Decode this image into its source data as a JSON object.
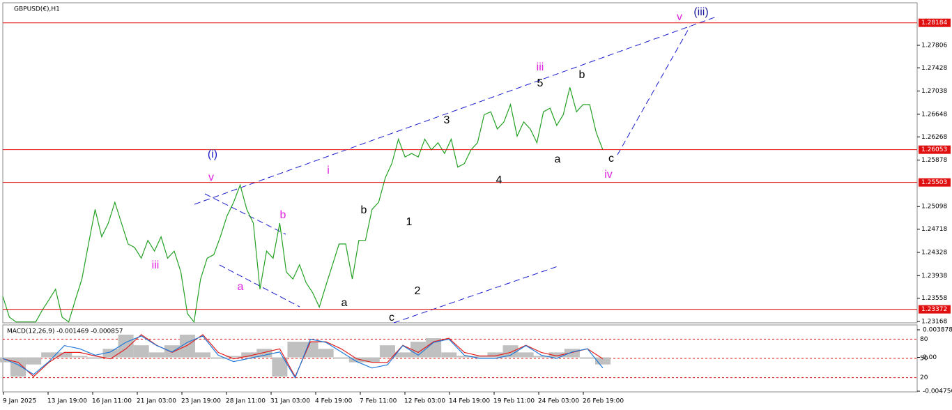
{
  "chart_data": [
    {
      "type": "line",
      "title": "GBPUSD(€),H1",
      "color": "#22a022",
      "ylim": [
        1.23145,
        1.2852
      ],
      "yticks": [
        1.27806,
        1.27428,
        1.27038,
        1.26648,
        1.26268,
        1.25878,
        1.25098,
        1.24718,
        1.24328,
        1.23938,
        1.23558,
        1.23168
      ],
      "levels": [
        1.28184,
        1.26053,
        1.25503,
        1.23372
      ],
      "level_color": "#e01010",
      "values": [
        1.2359,
        1.2324,
        1.2316,
        1.2316,
        1.2316,
        1.2316,
        1.2336,
        1.2353,
        1.2371,
        1.2324,
        1.2316,
        1.2353,
        1.2388,
        1.2447,
        1.2505,
        1.2459,
        1.2482,
        1.2517,
        1.2482,
        1.2447,
        1.2441,
        1.2423,
        1.2453,
        1.2435,
        1.2459,
        1.2423,
        1.2435,
        1.24,
        1.233,
        1.2316,
        1.2388,
        1.2423,
        1.2429,
        1.2459,
        1.2494,
        1.2517,
        1.2546,
        1.2505,
        1.2482,
        1.2371,
        1.2435,
        1.2423,
        1.2482,
        1.24,
        1.2388,
        1.2412,
        1.2382,
        1.2365,
        1.2341,
        1.2377,
        1.2412,
        1.2447,
        1.2447,
        1.2388,
        1.2453,
        1.2453,
        1.2505,
        1.2517,
        1.2558,
        1.2582,
        1.2623,
        1.2593,
        1.2599,
        1.2593,
        1.2623,
        1.2605,
        1.2617,
        1.2599,
        1.2623,
        1.2576,
        1.2582,
        1.2605,
        1.2617,
        1.2664,
        1.2669,
        1.264,
        1.2652,
        1.2681,
        1.2628,
        1.2652,
        1.264,
        1.2617,
        1.2669,
        1.2675,
        1.2646,
        1.2664,
        1.271,
        1.2669,
        1.2681,
        1.2681,
        1.2634,
        1.2605
      ],
      "x_tick_labels": [
        "9 Jan 2025",
        "13 Jan 19:00",
        "16 Jan 11:00",
        "21 Jan 03:00",
        "23 Jan 19:00",
        "28 Jan 11:00",
        "31 Jan 03:00",
        "4 Feb 19:00",
        "7 Feb 11:00",
        "12 Feb 03:00",
        "14 Feb 19:00",
        "19 Feb 11:00",
        "24 Feb 03:00",
        "26 Feb 19:00"
      ],
      "annotations": [
        {
          "text": "(iii)",
          "color": "#1a1a9a"
        },
        {
          "text": "v",
          "color": "#e020e0"
        },
        {
          "text": "iii",
          "color": "#e020e0"
        },
        {
          "text": "b",
          "color": "#000000"
        },
        {
          "text": "5",
          "color": "#000000"
        },
        {
          "text": "3",
          "color": "#000000"
        },
        {
          "text": "a",
          "color": "#000000"
        },
        {
          "text": "c",
          "color": "#000000"
        },
        {
          "text": "iv",
          "color": "#e020e0"
        },
        {
          "text": "4",
          "color": "#000000"
        },
        {
          "text": "(i)",
          "color": "#1a1acc"
        },
        {
          "text": "v",
          "color": "#e020e0"
        },
        {
          "text": "i",
          "color": "#e020e0"
        },
        {
          "text": "b",
          "color": "#e020e0"
        },
        {
          "text": "b",
          "color": "#000000"
        },
        {
          "text": "1",
          "color": "#000000"
        },
        {
          "text": "a",
          "color": "#e020e0"
        },
        {
          "text": "iii",
          "color": "#e020e0"
        },
        {
          "text": "2",
          "color": "#000000"
        },
        {
          "text": "a",
          "color": "#000000"
        },
        {
          "text": "c",
          "color": "#000000"
        }
      ]
    },
    {
      "type": "macd",
      "title": "MACD(12,26,9) -0.001469 -0.000857",
      "ylim": [
        -0.004756,
        0.003878
      ],
      "yticks": [
        0.003878,
        {
          "value": 0,
          "label": "0.00"
        },
        -0.004756
      ],
      "y2lim": [
        0,
        100
      ],
      "y2ticks": [
        80,
        50,
        20
      ],
      "grid_color": "#e01010",
      "series": [
        {
          "kind": "histogram",
          "color": "#c0c0c0",
          "values": [
            -0.0007,
            -0.0027,
            -0.001,
            0.0007,
            0.0007,
            0.0002,
            -0.0002,
            0.0012,
            0.0032,
            0.0017,
            0.0007,
            0.0017,
            0.0032,
            0.0007,
            -0.0002,
            0.0002,
            0.0007,
            0.0012,
            -0.0027,
            0.0022,
            0.0022,
            0.0012,
            -0.0002,
            -0.0007,
            -0.0007,
            0.0017,
            0.0007,
            0.0022,
            0.0027,
            0.0007,
            0.0002,
            0.0002,
            0.0007,
            0.0017,
            0.0007,
            0.0002,
            0.0007,
            0.0012,
            -0.0002,
            -0.001
          ]
        },
        {
          "kind": "line",
          "color": "#e02020",
          "values": [
            -0.0002,
            -0.0007,
            -0.0027,
            -0.0007,
            0.0007,
            0.0007,
            0.0002,
            -0.0002,
            0.0012,
            0.0032,
            0.0017,
            0.0007,
            0.0017,
            0.0032,
            0.0007,
            -0.0002,
            0.0002,
            0.0007,
            0.0012,
            -0.0027,
            0.0022,
            0.0022,
            0.0012,
            -0.0002,
            -0.0007,
            -0.0007,
            0.0017,
            0.0007,
            0.0022,
            0.0027,
            0.0007,
            0.0002,
            0.0002,
            0.0007,
            0.0017,
            0.0007,
            0.0002,
            0.0007,
            0.0012,
            -0.0002
          ]
        },
        {
          "kind": "line",
          "color": "#1e78d8",
          "axis": "y2",
          "values": [
            50,
            40,
            25,
            45,
            70,
            65,
            55,
            60,
            75,
            85,
            70,
            60,
            75,
            85,
            55,
            45,
            50,
            55,
            60,
            20,
            80,
            75,
            60,
            45,
            35,
            40,
            70,
            55,
            75,
            80,
            55,
            50,
            50,
            55,
            70,
            55,
            50,
            60,
            65,
            35
          ]
        }
      ]
    }
  ]
}
